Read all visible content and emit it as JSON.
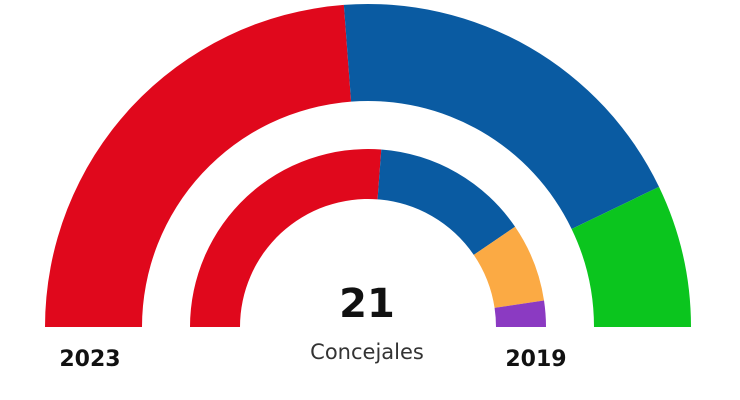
{
  "chart_data": {
    "type": "pie",
    "variant": "parliament-semicircle",
    "total_seats": "21",
    "total_caption": "Concejales",
    "rings": [
      {
        "label": "2023",
        "position": "outer",
        "seats": [
          {
            "party_color": "#e0081c",
            "value": 10
          },
          {
            "party_color": "#0a5ba2",
            "value": 8
          },
          {
            "party_color": "#0bc51e",
            "value": 3
          }
        ]
      },
      {
        "label": "2019",
        "position": "inner",
        "seats": [
          {
            "party_color": "#e0081c",
            "value": 11
          },
          {
            "party_color": "#0a5ba2",
            "value": 6
          },
          {
            "party_color": "#fbaa44",
            "value": 3
          },
          {
            "party_color": "#8b3ac2",
            "value": 1
          }
        ]
      }
    ]
  }
}
